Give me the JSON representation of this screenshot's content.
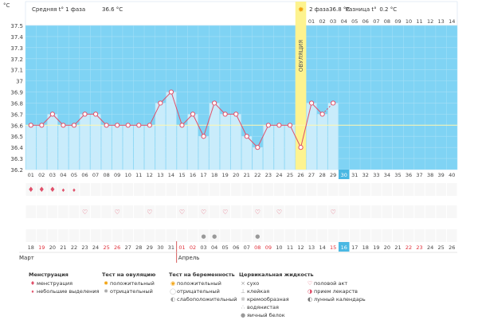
{
  "chart_data": {
    "type": "line",
    "unit_label": "°C",
    "yticks": [
      "37.5",
      "37.4",
      "37.3",
      "37.2",
      "37.1",
      "37",
      "36.9",
      "36.8",
      "36.7",
      "36.6",
      "36.5",
      "36.4",
      "36.3",
      "36.2"
    ],
    "ylim": [
      36.2,
      37.5
    ],
    "phase1_label": "Средняя t° 1 фаза",
    "phase1_value": "36.6 °C",
    "phase2_label": "2 фаза",
    "phase2_value": "36.8 °C",
    "diff_label": "Разница t°",
    "diff_value": "0.2 °C",
    "ovulation_label": "ОВУЛЯЦИЯ",
    "phase1_avg_line": 36.6,
    "cycle_days": [
      "01",
      "02",
      "03",
      "04",
      "05",
      "06",
      "07",
      "08",
      "09",
      "10",
      "11",
      "12",
      "13",
      "14",
      "15",
      "16",
      "17",
      "18",
      "19",
      "20",
      "21",
      "22",
      "23",
      "24",
      "25",
      "26",
      "27",
      "28",
      "29",
      "30",
      "31",
      "32",
      "33",
      "34",
      "35",
      "36",
      "37",
      "38",
      "39",
      "40"
    ],
    "post_ovulation_days": [
      "01",
      "02",
      "03",
      "04",
      "05",
      "06",
      "07",
      "08",
      "09",
      "10",
      "11",
      "12",
      "13",
      "14"
    ],
    "temperatures": [
      36.6,
      36.6,
      36.7,
      36.6,
      36.6,
      36.7,
      36.7,
      36.6,
      36.6,
      36.6,
      36.6,
      36.6,
      36.8,
      36.9,
      36.6,
      36.7,
      36.5,
      36.8,
      36.7,
      36.7,
      36.5,
      36.4,
      36.6,
      36.6,
      36.6,
      36.4,
      36.8,
      36.7,
      36.8
    ],
    "dashed_segment": [
      28,
      29
    ],
    "ovulation_day_index": 26,
    "current_day_index": 30,
    "dates": [
      "18",
      "19",
      "20",
      "21",
      "22",
      "23",
      "24",
      "25",
      "26",
      "27",
      "28",
      "29",
      "30",
      "31",
      "01",
      "02",
      "03",
      "04",
      "05",
      "06",
      "07",
      "08",
      "09",
      "10",
      "11",
      "12",
      "13",
      "14",
      "15",
      "16",
      "17",
      "18",
      "19",
      "20",
      "21",
      "22",
      "23",
      "24",
      "25",
      "26"
    ],
    "red_dates_indices": [
      1,
      7,
      8,
      14,
      15,
      21,
      22,
      28,
      29,
      35,
      36
    ],
    "month_1": "Март",
    "month_2": "Апрель",
    "menstruation_days": [
      1,
      2,
      3,
      4,
      5
    ],
    "ovulation_test_days": [],
    "heart_days": [
      6,
      9,
      12,
      15,
      17,
      19,
      22,
      24,
      29
    ],
    "egg_white_days": [
      17,
      18,
      22
    ]
  },
  "legend": {
    "menstruation": {
      "title": "Менструация",
      "items": [
        "менструация",
        "небольшие выделения"
      ]
    },
    "ovulation_test": {
      "title": "Тест на овуляцию",
      "items": [
        "положительный",
        "отрицательный"
      ]
    },
    "pregnancy_test": {
      "title": "Тест на беременность",
      "items": [
        "положительный",
        "отрицательный",
        "слабоположительный"
      ]
    },
    "cervical": {
      "title": "Цервикальная жидкость",
      "items": [
        "сухо",
        "клейкая",
        "кремообразная",
        "водянистая",
        "яичный белок"
      ]
    },
    "other": {
      "items": [
        "половой акт",
        "прием лекарств",
        "лунный календарь"
      ]
    }
  },
  "colors": {
    "bg_blue": "#7fd3f4",
    "bar_fill": "#c9ecfb",
    "line": "#e0506a",
    "ovulation": "#fdf38f",
    "current": "#4ab8e3",
    "red_text": "#e0303a"
  }
}
